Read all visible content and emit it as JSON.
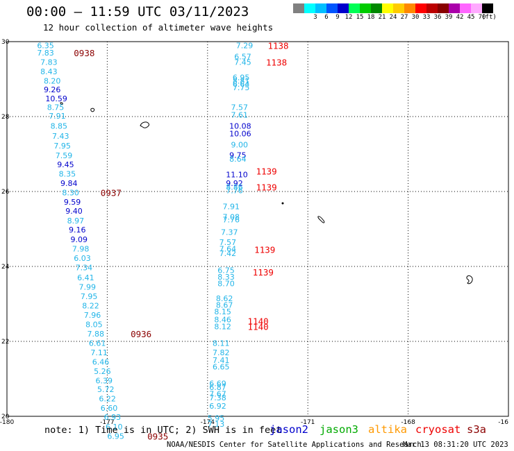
{
  "header": {
    "title": "00:00 – 11:59 UTC 03/11/2023",
    "subtitle": "12 hour collection of altimeter wave heights"
  },
  "legend": {
    "unit": "(ft)",
    "bins": [
      {
        "label": "",
        "color": "#808080"
      },
      {
        "label": "3",
        "color": "#00ffff"
      },
      {
        "label": "6",
        "color": "#00bfff"
      },
      {
        "label": "9",
        "color": "#0055ff"
      },
      {
        "label": "12",
        "color": "#0000cc"
      },
      {
        "label": "15",
        "color": "#00ff55"
      },
      {
        "label": "18",
        "color": "#00cc00"
      },
      {
        "label": "21",
        "color": "#008800"
      },
      {
        "label": "24",
        "color": "#ffff00"
      },
      {
        "label": "27",
        "color": "#ffcc00"
      },
      {
        "label": "30",
        "color": "#ff8800"
      },
      {
        "label": "33",
        "color": "#ff0000"
      },
      {
        "label": "36",
        "color": "#bb0000"
      },
      {
        "label": "39",
        "color": "#880000"
      },
      {
        "label": "42",
        "color": "#aa00aa"
      },
      {
        "label": "45",
        "color": "#ff66ff"
      },
      {
        "label": "70",
        "color": "#ffaaff"
      },
      {
        "label": "",
        "color": "#000000"
      }
    ]
  },
  "axes": {
    "lon_ticks": [
      "-180",
      "-177",
      "-174",
      "-171",
      "-168",
      "-16"
    ],
    "lat_ticks": [
      "30",
      "28",
      "26",
      "24",
      "22",
      "20"
    ]
  },
  "chart_data": {
    "type": "scatter",
    "x_range": [
      -180,
      -165
    ],
    "y_range": [
      20,
      30
    ],
    "grid": true,
    "tracks": [
      {
        "points": [
          {
            "lon": -179.1,
            "lat": 29.9,
            "v": "6.35",
            "c": "#22b5e8"
          },
          {
            "lon": -179.1,
            "lat": 29.7,
            "v": "7.83",
            "c": "#22b5e8"
          },
          {
            "lon": -179.0,
            "lat": 29.45,
            "v": "7.83",
            "c": "#22b5e8"
          },
          {
            "lon": -179.0,
            "lat": 29.2,
            "v": "8.43",
            "c": "#22b5e8"
          },
          {
            "lon": -178.9,
            "lat": 28.95,
            "v": "8.20",
            "c": "#22b5e8"
          },
          {
            "lon": -178.9,
            "lat": 28.72,
            "v": "9.26",
            "c": "#0000cc"
          },
          {
            "lon": -178.85,
            "lat": 28.48,
            "v": "10.59",
            "c": "#0000cc"
          },
          {
            "lon": -178.8,
            "lat": 28.25,
            "v": "8.75",
            "c": "#22b5e8"
          },
          {
            "lon": -178.75,
            "lat": 28.02,
            "v": "7.91",
            "c": "#22b5e8"
          },
          {
            "lon": -178.7,
            "lat": 27.75,
            "v": "8.85",
            "c": "#22b5e8"
          },
          {
            "lon": -178.65,
            "lat": 27.48,
            "v": "7.43",
            "c": "#22b5e8"
          },
          {
            "lon": -178.6,
            "lat": 27.22,
            "v": "7.95",
            "c": "#22b5e8"
          },
          {
            "lon": -178.55,
            "lat": 26.96,
            "v": "7.59",
            "c": "#22b5e8"
          },
          {
            "lon": -178.5,
            "lat": 26.72,
            "v": "9.45",
            "c": "#0000cc"
          },
          {
            "lon": -178.45,
            "lat": 26.47,
            "v": "8.35",
            "c": "#22b5e8"
          },
          {
            "lon": -178.4,
            "lat": 26.22,
            "v": "9.84",
            "c": "#0000cc"
          },
          {
            "lon": -178.35,
            "lat": 25.97,
            "v": "8.30",
            "c": "#22b5e8"
          },
          {
            "lon": -178.3,
            "lat": 25.72,
            "v": "9.59",
            "c": "#0000cc"
          },
          {
            "lon": -178.25,
            "lat": 25.48,
            "v": "9.40",
            "c": "#0000cc"
          },
          {
            "lon": -178.2,
            "lat": 25.22,
            "v": "8.97",
            "c": "#22b5e8"
          },
          {
            "lon": -178.15,
            "lat": 24.98,
            "v": "9.16",
            "c": "#0000cc"
          },
          {
            "lon": -178.1,
            "lat": 24.72,
            "v": "9.09",
            "c": "#0000cc"
          },
          {
            "lon": -178.05,
            "lat": 24.47,
            "v": "7.98",
            "c": "#22b5e8"
          },
          {
            "lon": -178.0,
            "lat": 24.22,
            "v": "6.03",
            "c": "#22b5e8"
          },
          {
            "lon": -177.95,
            "lat": 23.97,
            "v": "7.34",
            "c": "#22b5e8"
          },
          {
            "lon": -177.9,
            "lat": 23.7,
            "v": "6.41",
            "c": "#22b5e8"
          },
          {
            "lon": -177.85,
            "lat": 23.45,
            "v": "7.99",
            "c": "#22b5e8"
          },
          {
            "lon": -177.8,
            "lat": 23.2,
            "v": "7.95",
            "c": "#22b5e8"
          },
          {
            "lon": -177.75,
            "lat": 22.95,
            "v": "8.22",
            "c": "#22b5e8"
          },
          {
            "lon": -177.7,
            "lat": 22.7,
            "v": "7.96",
            "c": "#22b5e8"
          },
          {
            "lon": -177.65,
            "lat": 22.45,
            "v": "8.05",
            "c": "#22b5e8"
          },
          {
            "lon": -177.6,
            "lat": 22.2,
            "v": "7.88",
            "c": "#22b5e8"
          },
          {
            "lon": -177.55,
            "lat": 21.95,
            "v": "6.61",
            "c": "#22b5e8"
          },
          {
            "lon": -177.5,
            "lat": 21.7,
            "v": "7.11",
            "c": "#22b5e8"
          },
          {
            "lon": -177.45,
            "lat": 21.45,
            "v": "6.46",
            "c": "#22b5e8"
          },
          {
            "lon": -177.4,
            "lat": 21.2,
            "v": "5.26",
            "c": "#22b5e8"
          },
          {
            "lon": -177.35,
            "lat": 20.95,
            "v": "6.39",
            "c": "#22b5e8"
          },
          {
            "lon": -177.3,
            "lat": 20.72,
            "v": "5.72",
            "c": "#22b5e8"
          },
          {
            "lon": -177.25,
            "lat": 20.47,
            "v": "6.22",
            "c": "#22b5e8"
          },
          {
            "lon": -177.2,
            "lat": 20.22,
            "v": "6.60",
            "c": "#22b5e8"
          },
          {
            "lon": -177.1,
            "lat": 19.98,
            "v": "6.93",
            "c": "#22b5e8"
          },
          {
            "lon": -177.05,
            "lat": 19.72,
            "v": "6.10",
            "c": "#22b5e8"
          },
          {
            "lon": -177.0,
            "lat": 19.47,
            "v": "6.95",
            "c": "#22b5e8"
          }
        ],
        "times": [
          {
            "lon": -178.0,
            "lat": 29.7,
            "t": "0938",
            "c": "#8b0000"
          },
          {
            "lon": -177.2,
            "lat": 25.97,
            "t": "0937",
            "c": "#8b0000"
          },
          {
            "lon": -176.3,
            "lat": 22.2,
            "t": "0936",
            "c": "#8b0000"
          },
          {
            "lon": -175.8,
            "lat": 19.47,
            "t": "0935",
            "c": "#8b0000"
          }
        ]
      },
      {
        "points": [
          {
            "lon": -173.15,
            "lat": 29.9,
            "v": "7.29",
            "c": "#22b5e8"
          },
          {
            "lon": -173.2,
            "lat": 29.6,
            "v": "6.57",
            "c": "#22b5e8"
          },
          {
            "lon": -173.2,
            "lat": 29.45,
            "v": "7.45",
            "c": "#22b5e8"
          },
          {
            "lon": -173.25,
            "lat": 29.05,
            "v": "6.95",
            "c": "#22b5e8"
          },
          {
            "lon": -173.25,
            "lat": 28.95,
            "v": "8.81",
            "c": "#22b5e8"
          },
          {
            "lon": -173.25,
            "lat": 28.87,
            "v": "6.64",
            "c": "#22b5e8"
          },
          {
            "lon": -173.25,
            "lat": 28.78,
            "v": "7.75",
            "c": "#22b5e8"
          },
          {
            "lon": -173.3,
            "lat": 28.25,
            "v": "7.57",
            "c": "#22b5e8"
          },
          {
            "lon": -173.3,
            "lat": 28.05,
            "v": "7.61",
            "c": "#22b5e8"
          },
          {
            "lon": -173.35,
            "lat": 27.75,
            "v": "10.08",
            "c": "#0000cc"
          },
          {
            "lon": -173.35,
            "lat": 27.55,
            "v": "10.06",
            "c": "#0000cc"
          },
          {
            "lon": -173.3,
            "lat": 27.25,
            "v": "9.00",
            "c": "#22b5e8"
          },
          {
            "lon": -173.35,
            "lat": 26.97,
            "v": "9.75",
            "c": "#0000cc"
          },
          {
            "lon": -173.35,
            "lat": 26.87,
            "v": "8.64",
            "c": "#22b5e8"
          },
          {
            "lon": -173.45,
            "lat": 26.45,
            "v": "11.10",
            "c": "#0000cc"
          },
          {
            "lon": -173.45,
            "lat": 26.22,
            "v": "9.92",
            "c": "#0000cc"
          },
          {
            "lon": -173.45,
            "lat": 26.12,
            "v": "8.86",
            "c": "#22b5e8"
          },
          {
            "lon": -173.45,
            "lat": 26.03,
            "v": "7.76",
            "c": "#22b5e8"
          },
          {
            "lon": -173.55,
            "lat": 25.6,
            "v": "7.91",
            "c": "#22b5e8"
          },
          {
            "lon": -173.55,
            "lat": 25.32,
            "v": "7.08",
            "c": "#22b5e8"
          },
          {
            "lon": -173.55,
            "lat": 25.25,
            "v": "7.76",
            "c": "#22b5e8"
          },
          {
            "lon": -173.6,
            "lat": 24.92,
            "v": "7.37",
            "c": "#22b5e8"
          },
          {
            "lon": -173.65,
            "lat": 24.65,
            "v": "7.57",
            "c": "#22b5e8"
          },
          {
            "lon": -173.65,
            "lat": 24.47,
            "v": "7.64",
            "c": "#22b5e8"
          },
          {
            "lon": -173.65,
            "lat": 24.35,
            "v": "7.42",
            "c": "#22b5e8"
          },
          {
            "lon": -173.7,
            "lat": 23.9,
            "v": "6.75",
            "c": "#22b5e8"
          },
          {
            "lon": -173.7,
            "lat": 23.72,
            "v": "8.33",
            "c": "#22b5e8"
          },
          {
            "lon": -173.7,
            "lat": 23.55,
            "v": "8.70",
            "c": "#22b5e8"
          },
          {
            "lon": -173.75,
            "lat": 23.15,
            "v": "8.62",
            "c": "#22b5e8"
          },
          {
            "lon": -173.75,
            "lat": 22.97,
            "v": "8.67",
            "c": "#22b5e8"
          },
          {
            "lon": -173.8,
            "lat": 22.8,
            "v": "8.15",
            "c": "#22b5e8"
          },
          {
            "lon": -173.8,
            "lat": 22.58,
            "v": "8.46",
            "c": "#22b5e8"
          },
          {
            "lon": -173.8,
            "lat": 22.4,
            "v": "8.12",
            "c": "#22b5e8"
          },
          {
            "lon": -173.85,
            "lat": 21.95,
            "v": "8.11",
            "c": "#22b5e8"
          },
          {
            "lon": -173.85,
            "lat": 21.7,
            "v": "7.82",
            "c": "#22b5e8"
          },
          {
            "lon": -173.85,
            "lat": 21.5,
            "v": "7.41",
            "c": "#22b5e8"
          },
          {
            "lon": -173.85,
            "lat": 21.32,
            "v": "6.65",
            "c": "#22b5e8"
          },
          {
            "lon": -173.95,
            "lat": 20.88,
            "v": "6.69",
            "c": "#22b5e8"
          },
          {
            "lon": -173.95,
            "lat": 20.78,
            "v": "6.87",
            "c": "#22b5e8"
          },
          {
            "lon": -173.95,
            "lat": 20.6,
            "v": "7.67",
            "c": "#22b5e8"
          },
          {
            "lon": -173.95,
            "lat": 20.5,
            "v": "7.38",
            "c": "#22b5e8"
          },
          {
            "lon": -173.95,
            "lat": 20.28,
            "v": "6.92",
            "c": "#22b5e8"
          },
          {
            "lon": -174.0,
            "lat": 19.95,
            "v": "5.95",
            "c": "#22b5e8"
          },
          {
            "lon": -174.0,
            "lat": 19.8,
            "v": "7.13",
            "c": "#22b5e8"
          }
        ],
        "times": [
          {
            "lon": -172.2,
            "lat": 29.9,
            "t": "1138",
            "c": "#ee0000"
          },
          {
            "lon": -172.25,
            "lat": 29.45,
            "t": "1138",
            "c": "#ee0000"
          },
          {
            "lon": -172.55,
            "lat": 26.55,
            "t": "1139",
            "c": "#ee0000"
          },
          {
            "lon": -172.55,
            "lat": 26.12,
            "t": "1139",
            "c": "#ee0000"
          },
          {
            "lon": -172.6,
            "lat": 24.45,
            "t": "1139",
            "c": "#ee0000"
          },
          {
            "lon": -172.65,
            "lat": 23.85,
            "t": "1139",
            "c": "#ee0000"
          },
          {
            "lon": -172.8,
            "lat": 22.55,
            "t": "1140",
            "c": "#ee0000"
          },
          {
            "lon": -172.8,
            "lat": 22.4,
            "t": "1140",
            "c": "#ee0000"
          }
        ]
      }
    ]
  },
  "footer": {
    "note": "note: 1) Time is in UTC; 2) SWH is in feet",
    "satellites": [
      {
        "name": "jason2",
        "color": "#0000cc"
      },
      {
        "name": "jason3",
        "color": "#00aa00"
      },
      {
        "name": "altika",
        "color": "#ff9900"
      },
      {
        "name": "cryosat",
        "color": "#ee0000"
      },
      {
        "name": "s3a",
        "color": "#8b0000"
      }
    ],
    "credit": "NOAA/NESDIS Center for Satellite Applications and Research",
    "timestamp": "Mar 13 08:31:20 UTC 2023"
  }
}
